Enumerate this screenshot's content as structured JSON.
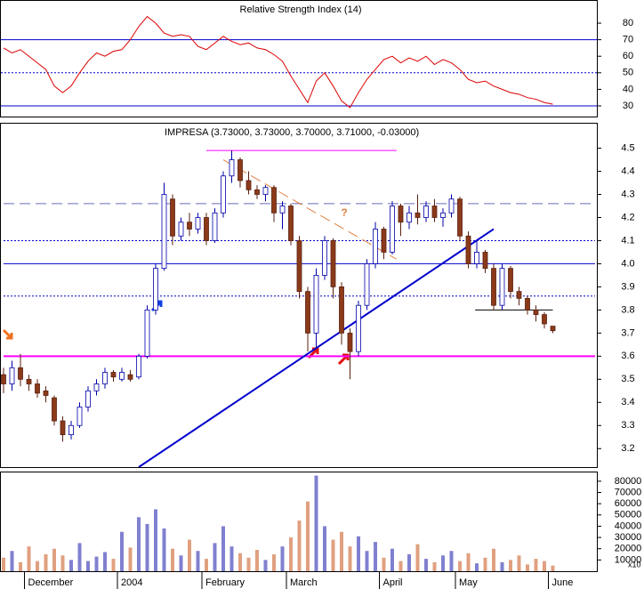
{
  "chart_data": [
    {
      "type": "line",
      "title": "Relative Strength Index (14)",
      "color": "#dd0000",
      "ylim": [
        23,
        94
      ],
      "yticks": [
        30,
        40,
        50,
        60,
        70,
        80
      ],
      "reference_lines": [
        {
          "value": 70,
          "style": "solid"
        },
        {
          "value": 50,
          "style": "dotted"
        },
        {
          "value": 30,
          "style": "solid"
        }
      ],
      "values": [
        65,
        62,
        64,
        60,
        56,
        52,
        42,
        38,
        42,
        50,
        57,
        62,
        60,
        63,
        64,
        70,
        78,
        84,
        80,
        74,
        72,
        73,
        72,
        66,
        64,
        68,
        72,
        69,
        67,
        68,
        65,
        64,
        61,
        57,
        48,
        40,
        32,
        45,
        50,
        42,
        33,
        29,
        38,
        46,
        52,
        58,
        60,
        56,
        59,
        57,
        60,
        55,
        58,
        56,
        52,
        46,
        44,
        45,
        42,
        40,
        38,
        37,
        35,
        34,
        32,
        31
      ]
    },
    {
      "type": "candlestick",
      "title": "IMPRESA (3.73000, 3.73000, 3.70000, 3.71000, -0.03000)",
      "up_color": "#ffffff",
      "down_color": "#8b3a1a",
      "ylim": [
        3.12,
        4.61
      ],
      "yticks": [
        3.2,
        3.3,
        3.4,
        3.5,
        3.6,
        3.7,
        3.8,
        3.9,
        {
          "value": 4,
          "label": "4.0"
        },
        4.1,
        4.2,
        4.3,
        4.4,
        4.5
      ],
      "open": [
        3.52,
        3.48,
        3.55,
        3.5,
        3.48,
        3.45,
        3.42,
        3.32,
        3.26,
        3.3,
        3.38,
        3.45,
        3.48,
        3.53,
        3.5,
        3.52,
        3.51,
        3.6,
        3.8,
        3.98,
        4.28,
        4.12,
        4.18,
        4.15,
        4.2,
        4.1,
        4.22,
        4.38,
        4.45,
        4.36,
        4.32,
        4.3,
        4.33,
        4.22,
        4.25,
        4.1,
        3.88,
        3.7,
        3.95,
        4.1,
        3.9,
        3.7,
        3.62,
        3.82,
        4.0,
        4.15,
        4.05,
        4.25,
        4.18,
        4.22,
        4.2,
        4.25,
        4.2,
        4.22,
        4.28,
        4.12,
        4.0,
        4.05,
        3.98,
        3.82,
        3.98,
        3.88,
        3.85,
        3.8,
        3.78,
        3.73
      ],
      "high": [
        3.55,
        3.58,
        3.61,
        3.52,
        3.5,
        3.47,
        3.43,
        3.34,
        3.32,
        3.4,
        3.47,
        3.5,
        3.55,
        3.54,
        3.55,
        3.54,
        3.61,
        3.82,
        4.0,
        4.35,
        4.3,
        4.2,
        4.22,
        4.22,
        4.22,
        4.24,
        4.4,
        4.49,
        4.46,
        4.4,
        4.34,
        4.34,
        4.34,
        4.27,
        4.26,
        4.12,
        3.9,
        3.98,
        4.12,
        4.11,
        3.92,
        3.72,
        3.84,
        4.02,
        4.18,
        4.16,
        4.27,
        4.26,
        4.25,
        4.3,
        4.27,
        4.28,
        4.24,
        4.3,
        4.29,
        4.14,
        4.1,
        4.06,
        4.0,
        4.0,
        3.99,
        3.9,
        3.86,
        3.82,
        3.79,
        3.73
      ],
      "low": [
        3.44,
        3.45,
        3.47,
        3.45,
        3.42,
        3.4,
        3.3,
        3.23,
        3.24,
        3.29,
        3.36,
        3.43,
        3.46,
        3.49,
        3.49,
        3.49,
        3.5,
        3.59,
        3.78,
        3.97,
        4.08,
        4.1,
        4.12,
        4.13,
        4.08,
        4.09,
        4.2,
        4.35,
        4.33,
        4.3,
        4.28,
        4.27,
        4.18,
        4.15,
        4.08,
        3.85,
        3.62,
        3.63,
        3.93,
        3.85,
        3.65,
        3.5,
        3.6,
        3.8,
        3.98,
        4.02,
        4.04,
        4.12,
        4.15,
        4.17,
        4.18,
        4.18,
        4.16,
        4.2,
        4.1,
        3.98,
        3.98,
        3.96,
        3.8,
        3.8,
        3.85,
        3.82,
        3.78,
        3.75,
        3.72,
        3.7
      ],
      "close": [
        3.48,
        3.55,
        3.5,
        3.48,
        3.44,
        3.43,
        3.32,
        3.26,
        3.3,
        3.38,
        3.45,
        3.48,
        3.53,
        3.51,
        3.53,
        3.5,
        3.6,
        3.8,
        3.98,
        4.3,
        4.12,
        4.18,
        4.15,
        4.2,
        4.1,
        4.22,
        4.38,
        4.45,
        4.36,
        4.32,
        4.3,
        4.33,
        4.22,
        4.25,
        4.1,
        3.88,
        3.7,
        3.95,
        4.1,
        3.9,
        3.7,
        3.62,
        3.82,
        4.0,
        4.15,
        4.05,
        4.25,
        4.18,
        4.22,
        4.2,
        4.25,
        4.2,
        4.22,
        4.28,
        4.12,
        4.0,
        4.05,
        3.98,
        3.82,
        3.98,
        3.88,
        3.85,
        3.8,
        3.78,
        3.74,
        3.71
      ],
      "levels": [
        {
          "value": 3.6,
          "color": "#ff00ff",
          "style": "solid",
          "from": 0,
          "to": 70
        },
        {
          "value": 4.49,
          "color": "#ff00ff",
          "style": "solid",
          "from": 24,
          "to": 46.5
        },
        {
          "value": 4.26,
          "color": "#6b6bbd",
          "style": "dashed",
          "from": 0,
          "to": 70
        },
        {
          "value": 4.1,
          "color": "#0000cc",
          "style": "dotted",
          "from": 0,
          "to": 70
        },
        {
          "value": 4.0,
          "color": "#0000cc",
          "style": "solid",
          "from": 0,
          "to": 70
        },
        {
          "value": 3.86,
          "color": "#0000cc",
          "style": "dotted",
          "from": 0,
          "to": 70
        },
        {
          "value": 3.8,
          "color": "#000000",
          "style": "solid",
          "from": 55.8,
          "to": 65
        }
      ],
      "trendlines": [
        {
          "start": [
            16,
            3.12
          ],
          "end": [
            58,
            4.15
          ],
          "color": "#0000cc",
          "style": "solid"
        },
        {
          "start": [
            26,
            4.45
          ],
          "end": [
            46.5,
            4.02
          ],
          "color": "#e08040",
          "style": "dashed"
        }
      ],
      "note_text": "?"
    },
    {
      "type": "bar",
      "unit_label": "x10",
      "up_color": "#8080d0",
      "down_color": "#e0a080",
      "ylim": [
        0,
        87000
      ],
      "yticks": [
        10000,
        20000,
        30000,
        40000,
        50000,
        60000,
        70000,
        80000
      ],
      "categories": [
        null,
        null,
        null,
        "December",
        null,
        null,
        null,
        null,
        null,
        null,
        null,
        null,
        null,
        null,
        "2004",
        null,
        null,
        null,
        null,
        null,
        null,
        null,
        null,
        null,
        "February",
        null,
        null,
        null,
        null,
        null,
        null,
        null,
        null,
        null,
        "March",
        null,
        null,
        null,
        null,
        null,
        null,
        null,
        null,
        null,
        null,
        "April",
        null,
        null,
        null,
        null,
        null,
        null,
        null,
        null,
        "May",
        null,
        null,
        null,
        null,
        null,
        null,
        null,
        null,
        null,
        null,
        "June"
      ],
      "values": [
        12000,
        18000,
        8000,
        22000,
        9000,
        15000,
        20000,
        14000,
        10000,
        25000,
        9000,
        13000,
        17000,
        11000,
        35000,
        21000,
        48000,
        42000,
        55000,
        38000,
        20000,
        14000,
        28000,
        18000,
        11000,
        25000,
        40000,
        22000,
        16000,
        12000,
        19000,
        10000,
        15000,
        22000,
        30000,
        45000,
        62000,
        85000,
        40000,
        28000,
        35000,
        22000,
        31000,
        18000,
        26000,
        12000,
        20000,
        9000,
        15000,
        24000,
        11000,
        8000,
        14000,
        18000,
        9000,
        16000,
        7000,
        12000,
        20000,
        8000,
        10000,
        14000,
        6000,
        11000,
        9000,
        5000
      ]
    }
  ]
}
